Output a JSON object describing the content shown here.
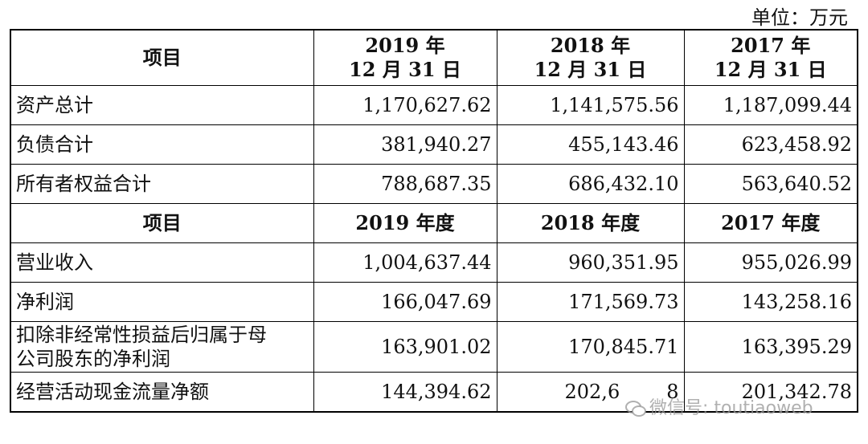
{
  "unit_label": "单位：万元",
  "header1": {
    "item": "项目",
    "cols": [
      {
        "line1": "2019 年",
        "line2": "12 月 31 日"
      },
      {
        "line1": "2018 年",
        "line2": "12 月 31 日"
      },
      {
        "line1": "2017 年",
        "line2": "12 月 31 日"
      }
    ]
  },
  "balance_rows": [
    {
      "label": "资产总计",
      "v2019": "1,170,627.62",
      "v2018": "1,141,575.56",
      "v2017": "1,187,099.44"
    },
    {
      "label": "负债合计",
      "v2019": "381,940.27",
      "v2018": "455,143.46",
      "v2017": "623,458.92"
    },
    {
      "label": "所有者权益合计",
      "v2019": "788,687.35",
      "v2018": "686,432.10",
      "v2017": "563,640.52"
    }
  ],
  "header2": {
    "item": "项目",
    "cols": [
      "2019 年度",
      "2018 年度",
      "2017 年度"
    ]
  },
  "income_rows": [
    {
      "label": "营业收入",
      "v2019": "1,004,637.44",
      "v2018": "960,351.95",
      "v2017": "955,026.99"
    },
    {
      "label": "净利润",
      "v2019": "166,047.69",
      "v2018": "171,569.73",
      "v2017": "143,258.16"
    },
    {
      "label_line1": "扣除非经常性损益后归属于母",
      "label_line2": "公司股东的净利润",
      "v2019": "163,901.02",
      "v2018": "170,845.71",
      "v2017": "163,395.29"
    },
    {
      "label": "经营活动现金流量净额",
      "v2019": "144,394.62",
      "v2018": "202,6",
      "v2018_tail": "8",
      "v2017": "201,342.78"
    }
  ],
  "watermark": "微信号: toutiaoweb"
}
